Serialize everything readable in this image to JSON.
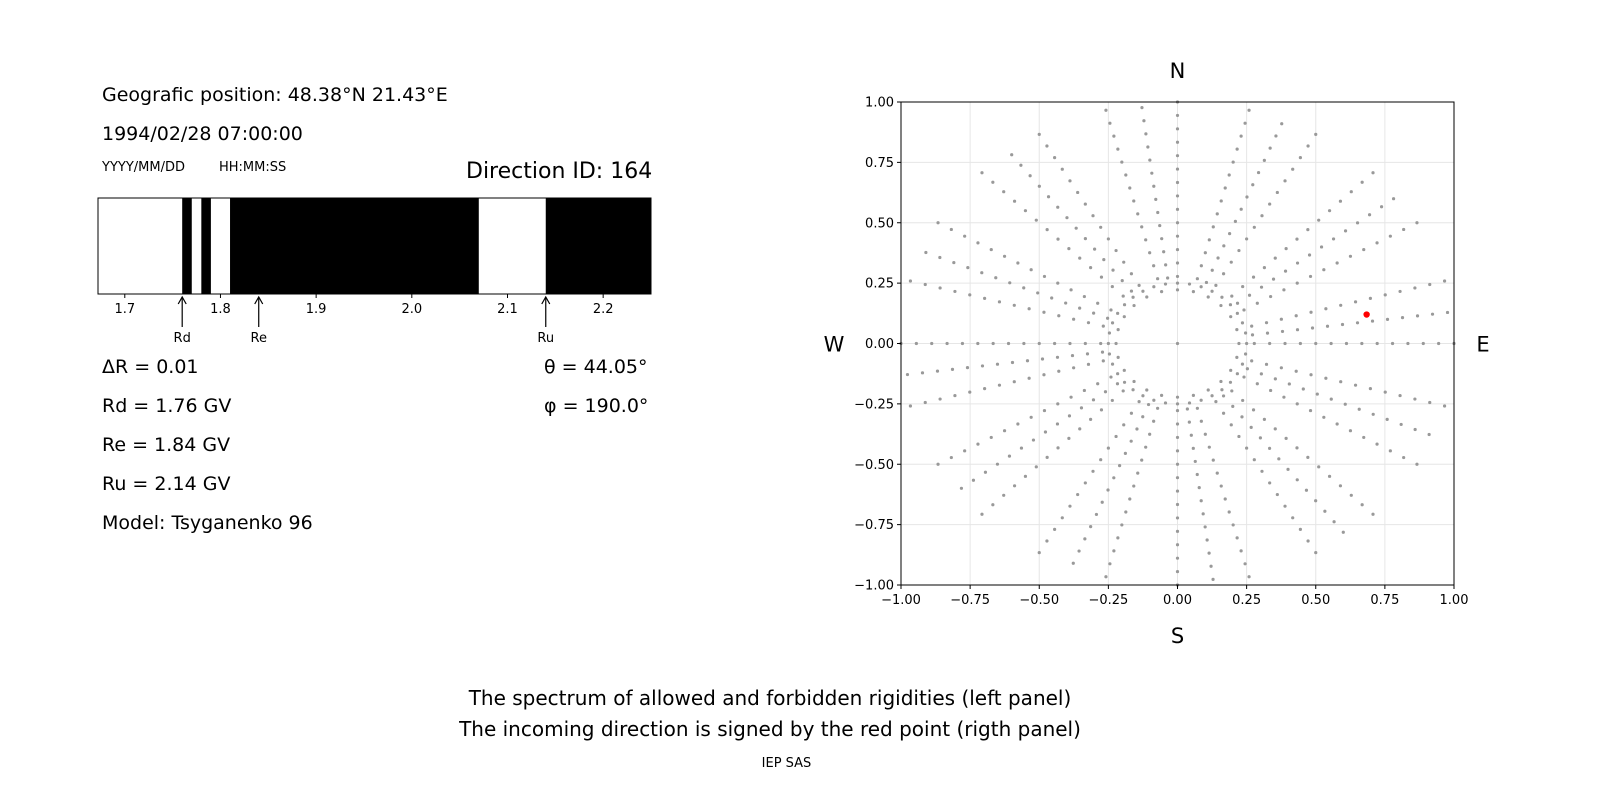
{
  "left_panel": {
    "geo_position": "Geografic position: 48.38°N 21.43°E",
    "datetime": "1994/02/28 07:00:00",
    "date_format": "YYYY/MM/DD",
    "time_format": "HH:MM:SS",
    "direction_id": "Direction ID: 164",
    "delta_r": "ΔR = 0.01",
    "theta": "θ = 44.05°",
    "phi": "φ = 190.0°",
    "rd_value": "Rd = 1.76 GV",
    "re_value": "Re = 1.84 GV",
    "ru_value": "Ru = 2.14 GV",
    "model": "Model: Tsyganenko 96"
  },
  "right_panel": {
    "north": "N",
    "south": "S",
    "west": "W",
    "east": "E"
  },
  "footer": {
    "caption_line1": "The spectrum of allowed and forbidden rigidities (left panel)",
    "caption_line2": "The incoming direction is signed by the red point (rigth panel)",
    "credit": "IEP SAS"
  },
  "colors": {
    "forbidden": "#000000",
    "allowed": "#ffffff",
    "grid_points": "#999999",
    "direction_point": "#ff0000"
  },
  "chart_data": [
    {
      "type": "bar",
      "description_of_encoding": "rigidity spectrum: black = forbidden, white = allowed",
      "xlim": [
        1.672,
        2.25
      ],
      "xticks": [
        1.7,
        1.8,
        1.9,
        2.0,
        2.1,
        2.2
      ],
      "xtick_labels": [
        "1.7",
        "1.8",
        "1.9",
        "2.0",
        "2.1",
        "2.2"
      ],
      "forbidden_intervals": [
        [
          1.76,
          1.77
        ],
        [
          1.78,
          1.79
        ],
        [
          1.81,
          2.07
        ],
        [
          2.14,
          2.25
        ]
      ],
      "markers": [
        {
          "label": "Rd",
          "value": 1.76
        },
        {
          "label": "Re",
          "value": 1.84
        },
        {
          "label": "Ru",
          "value": 2.14
        }
      ]
    },
    {
      "type": "scatter",
      "xlim": [
        -1.0,
        1.0
      ],
      "ylim": [
        -1.0,
        1.0
      ],
      "xticks": [
        -1.0,
        -0.75,
        -0.5,
        -0.25,
        0.0,
        0.25,
        0.5,
        0.75,
        1.0
      ],
      "yticks": [
        -1.0,
        -0.75,
        -0.5,
        -0.25,
        0.0,
        0.25,
        0.5,
        0.75,
        1.0
      ],
      "xtick_labels": [
        "−1.00",
        "−0.75",
        "−0.50",
        "−0.25",
        "0.00",
        "0.25",
        "0.50",
        "0.75",
        "1.00"
      ],
      "ytick_labels": [
        "−1.00",
        "−0.75",
        "−0.50",
        "−0.25",
        "0.00",
        "0.25",
        "0.50",
        "0.75",
        "1.00"
      ],
      "grid": true,
      "series": [
        {
          "pattern": "radial direction grid",
          "zenith_step_deg": 5,
          "zenith_max_deg": 90,
          "inner_ring_zenith_deg": 15,
          "inner_ring_points": 36,
          "rays_outer": 24,
          "rays_mid": 12,
          "mid_start_zenith_deg": 25,
          "color": "#999999"
        },
        {
          "name": "incoming direction",
          "x": [
            0.684
          ],
          "y": [
            0.12
          ],
          "color": "#ff0000"
        }
      ]
    }
  ]
}
